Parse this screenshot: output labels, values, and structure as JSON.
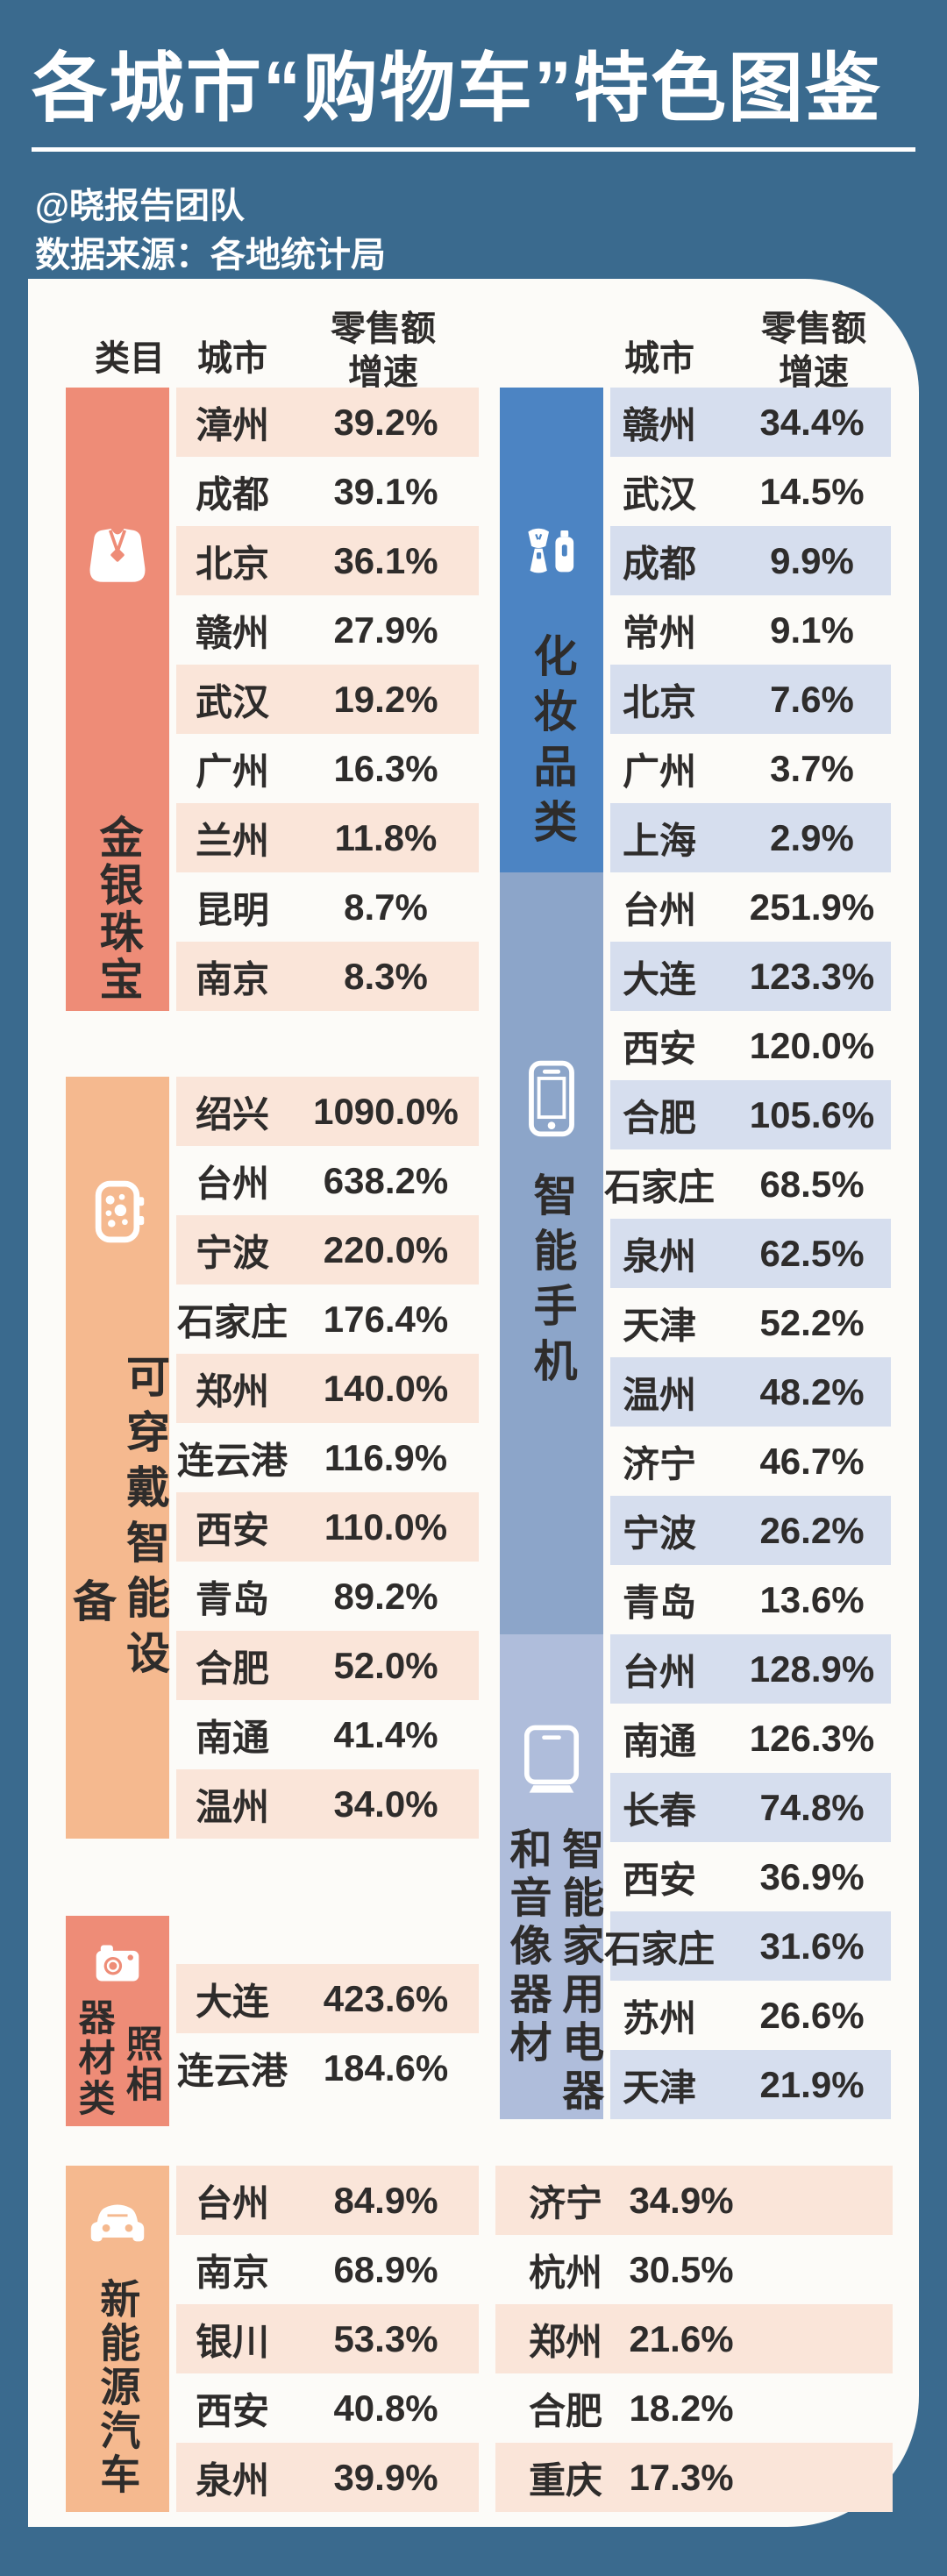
{
  "title": "各城市“购物车”特色图鉴",
  "credits": {
    "team": "@晓报告团队",
    "source": "数据来源：各地统计局"
  },
  "headers": {
    "category": "类目",
    "city": "城市",
    "growth_line1": "零售额",
    "growth_line2": "增速"
  },
  "colors": {
    "background": "#3A6A8E",
    "card": "#FCFBF8",
    "stripe_warm": "#FAE5D9",
    "stripe_cool": "#D6DEEE",
    "text": "#2E2C2B",
    "salmon": "#EE8C77",
    "orange": "#F5B98F",
    "blue": "#4C84C3",
    "slate_blue": "#8CA5C9",
    "periwinkle": "#AFBDDB"
  },
  "chart_data": {
    "type": "table",
    "title": "各城市“购物车”特色图鉴",
    "columns": [
      "类目",
      "城市",
      "零售额增速"
    ],
    "categories": [
      {
        "key": "jewelry",
        "name": "金银珠宝",
        "name_cols": [
          "金银珠宝"
        ],
        "icon": "necklace-icon",
        "side": "left",
        "bar_color": "#EE8C77",
        "rows": [
          [
            "漳州",
            "39.2%"
          ],
          [
            "成都",
            "39.1%"
          ],
          [
            "北京",
            "36.1%"
          ],
          [
            "赣州",
            "27.9%"
          ],
          [
            "武汉",
            "19.2%"
          ],
          [
            "广州",
            "16.3%"
          ],
          [
            "兰州",
            "11.8%"
          ],
          [
            "昆明",
            "8.7%"
          ],
          [
            "南京",
            "8.3%"
          ]
        ]
      },
      {
        "key": "wearable",
        "name": "可穿戴智能设备",
        "name_cols": [
          "可穿戴智能设",
          "备"
        ],
        "icon": "smartwatch-icon",
        "side": "left",
        "bar_color": "#F5B98F",
        "rows": [
          [
            "绍兴",
            "1090.0%"
          ],
          [
            "台州",
            "638.2%"
          ],
          [
            "宁波",
            "220.0%"
          ],
          [
            "石家庄",
            "176.4%"
          ],
          [
            "郑州",
            "140.0%"
          ],
          [
            "连云港",
            "116.9%"
          ],
          [
            "西安",
            "110.0%"
          ],
          [
            "青岛",
            "89.2%"
          ],
          [
            "合肥",
            "52.0%"
          ],
          [
            "南通",
            "41.4%"
          ],
          [
            "温州",
            "34.0%"
          ]
        ]
      },
      {
        "key": "camera",
        "name": "照相器材类",
        "name_cols": [
          "照相",
          "器材类"
        ],
        "icon": "camera-icon",
        "side": "left",
        "bar_color": "#EE8C77",
        "rows": [
          [
            "大连",
            "423.6%"
          ],
          [
            "连云港",
            "184.6%"
          ]
        ]
      },
      {
        "key": "nev",
        "name": "新能源汽车",
        "name_cols": [
          "新能源汽车"
        ],
        "icon": "car-icon",
        "side": "left",
        "bar_color": "#F5B98F",
        "rows": [
          [
            "台州",
            "84.9%"
          ],
          [
            "南京",
            "68.9%"
          ],
          [
            "银川",
            "53.3%"
          ],
          [
            "西安",
            "40.8%"
          ],
          [
            "泉州",
            "39.9%"
          ]
        ],
        "rows_overflow": [
          [
            "济宁",
            "34.9%"
          ],
          [
            "杭州",
            "30.5%"
          ],
          [
            "郑州",
            "21.6%"
          ],
          [
            "合肥",
            "18.2%"
          ],
          [
            "重庆",
            "17.3%"
          ]
        ]
      },
      {
        "key": "cosmetics",
        "name": "化妆品类",
        "name_cols": [
          "化妆品类"
        ],
        "icon": "cosmetics-icon",
        "side": "right",
        "bar_color": "#4C84C3",
        "rows": [
          [
            "赣州",
            "34.4%"
          ],
          [
            "武汉",
            "14.5%"
          ],
          [
            "成都",
            "9.9%"
          ],
          [
            "常州",
            "9.1%"
          ],
          [
            "北京",
            "7.6%"
          ],
          [
            "广州",
            "3.7%"
          ],
          [
            "上海",
            "2.9%"
          ]
        ]
      },
      {
        "key": "phone",
        "name": "智能手机",
        "name_cols": [
          "智能手机"
        ],
        "icon": "smartphone-icon",
        "side": "right",
        "bar_color": "#8CA5C9",
        "rows": [
          [
            "台州",
            "251.9%"
          ],
          [
            "大连",
            "123.3%"
          ],
          [
            "西安",
            "120.0%"
          ],
          [
            "合肥",
            "105.6%"
          ],
          [
            "石家庄",
            "68.5%"
          ],
          [
            "泉州",
            "62.5%"
          ],
          [
            "天津",
            "52.2%"
          ],
          [
            "温州",
            "48.2%"
          ],
          [
            "济宁",
            "46.7%"
          ],
          [
            "宁波",
            "26.2%"
          ],
          [
            "青岛",
            "13.6%"
          ]
        ]
      },
      {
        "key": "appliance",
        "name": "智能家用电器和音像器材",
        "name_cols": [
          "智能家用电器",
          "和音像器材"
        ],
        "icon": "appliance-icon",
        "side": "right",
        "bar_color": "#AFBDDB",
        "rows": [
          [
            "台州",
            "128.9%"
          ],
          [
            "南通",
            "126.3%"
          ],
          [
            "长春",
            "74.8%"
          ],
          [
            "西安",
            "36.9%"
          ],
          [
            "石家庄",
            "31.6%"
          ],
          [
            "苏州",
            "26.6%"
          ],
          [
            "天津",
            "21.9%"
          ]
        ]
      }
    ]
  }
}
